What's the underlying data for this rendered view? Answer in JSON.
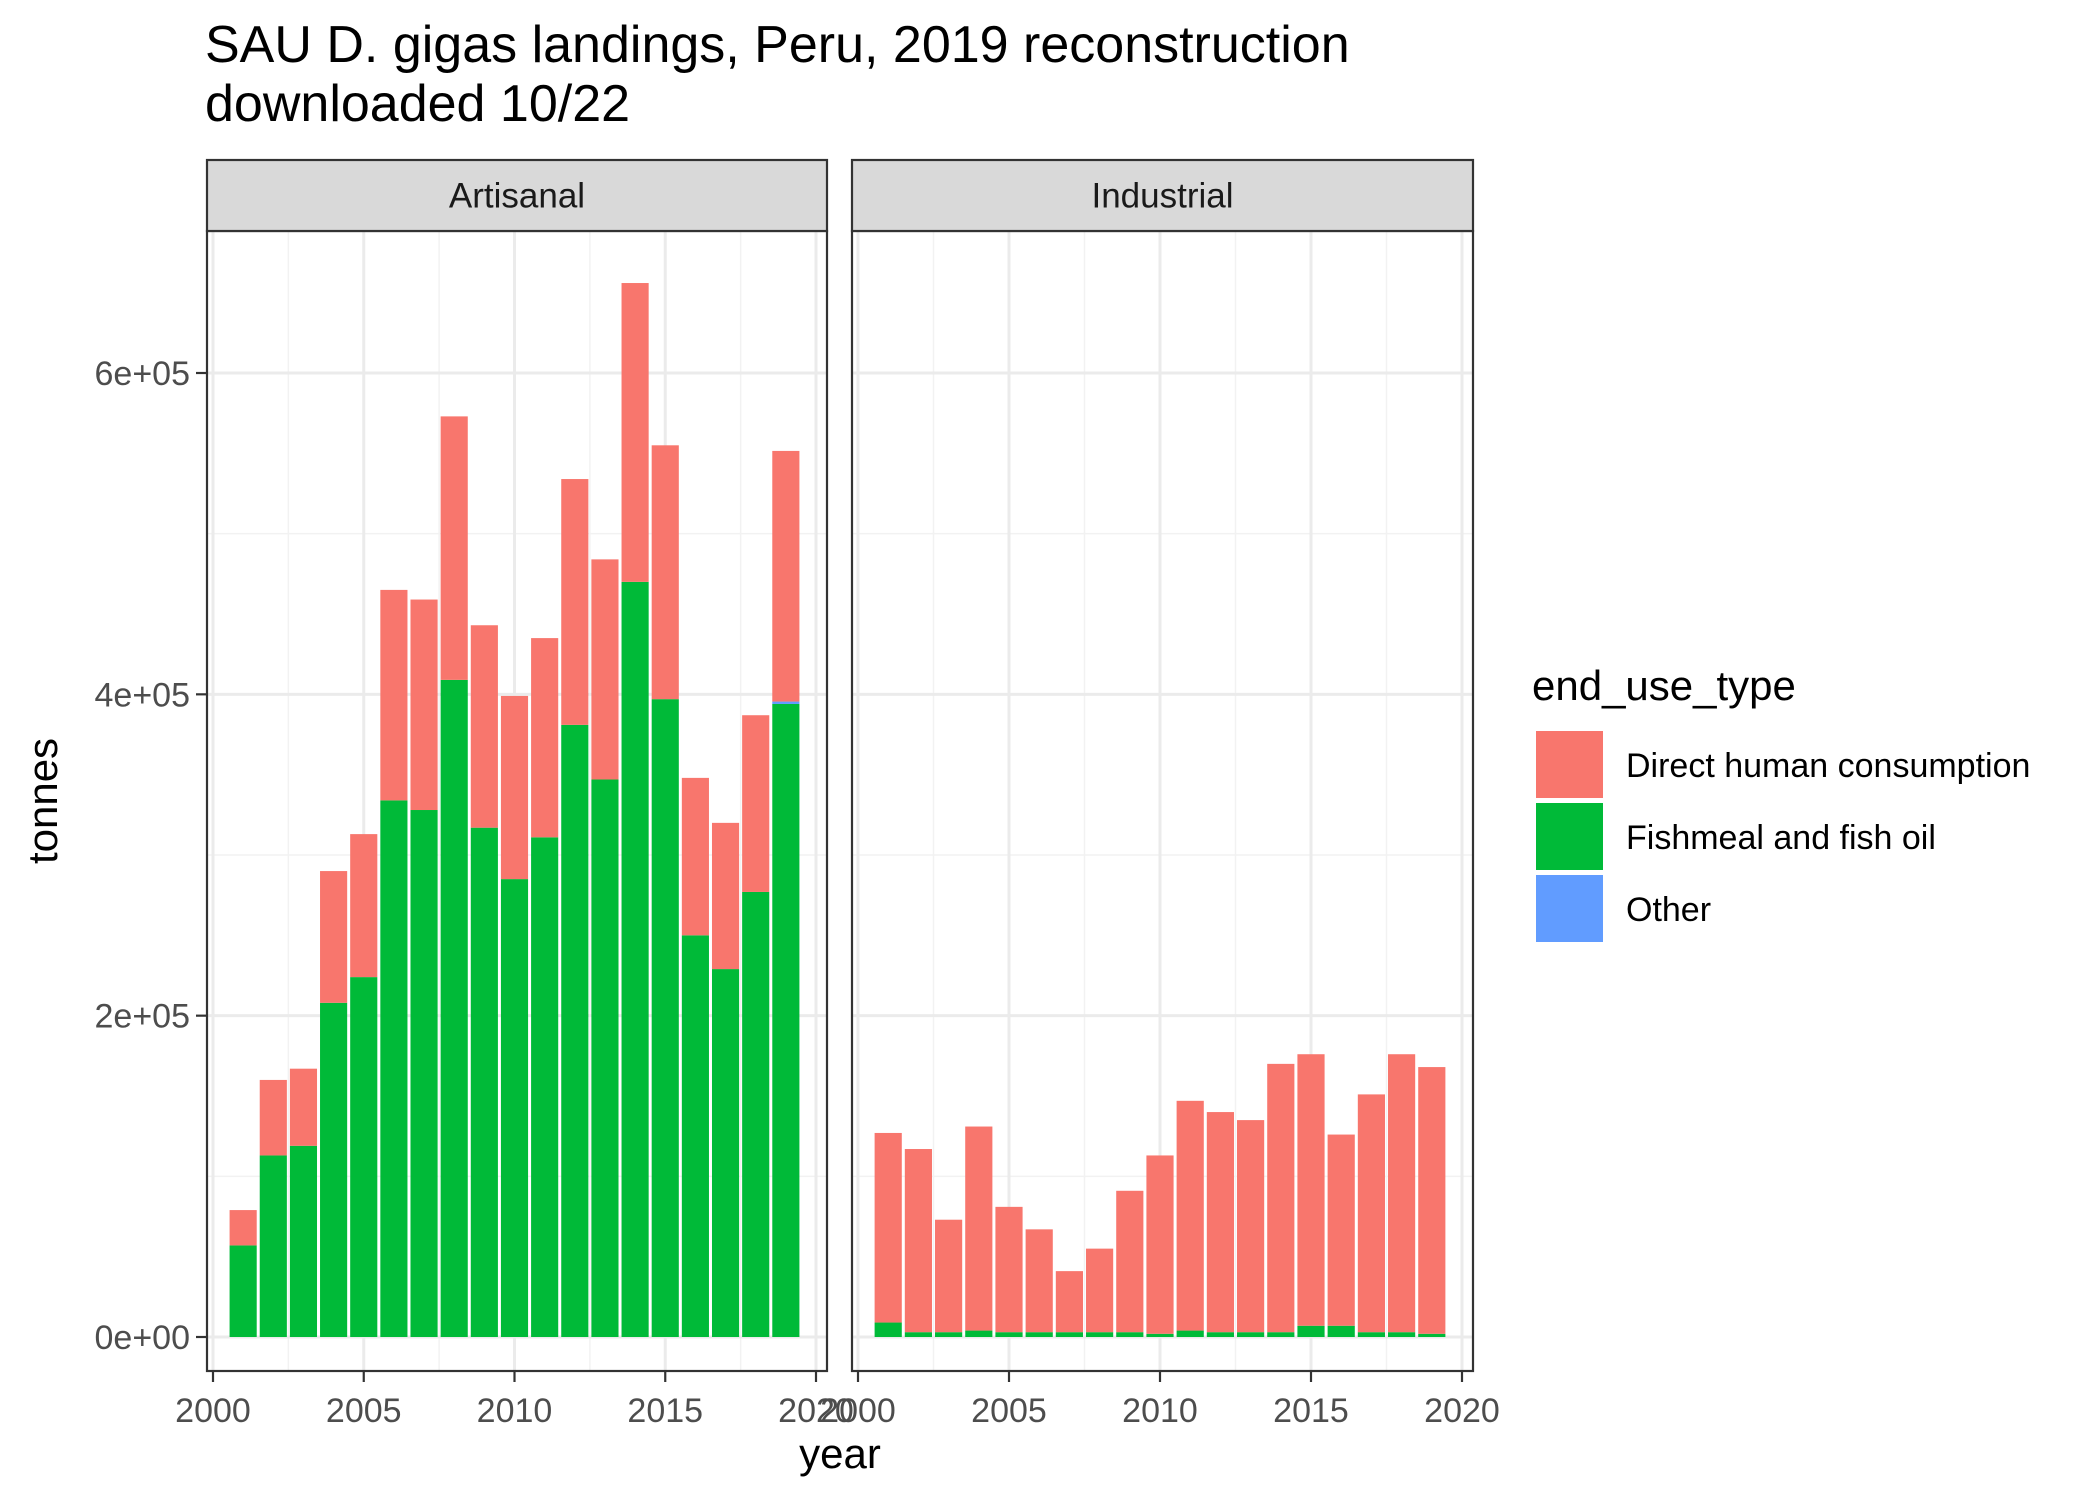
{
  "chart_data": {
    "type": "bar",
    "stacked": true,
    "title": "SAU D. gigas landings, Peru, 2019 reconstruction\ndownloaded 10/22",
    "title_lines": [
      "SAU D. gigas landings, Peru, 2019 reconstruction",
      "downloaded 10/22"
    ],
    "xlabel": "year",
    "ylabel": "tonnes",
    "xlim": [
      2000,
      2020
    ],
    "ylim": [
      0,
      690000
    ],
    "x_ticks": [
      2000,
      2005,
      2010,
      2015,
      2020
    ],
    "x_tick_labels": [
      "2000",
      "2005",
      "2010",
      "2015",
      "2020"
    ],
    "y_ticks": [
      0,
      200000,
      400000,
      600000
    ],
    "y_tick_labels": [
      "0e+00",
      "2e+05",
      "4e+05",
      "6e+05"
    ],
    "grid": true,
    "legend": {
      "title": "end_use_type",
      "position": "right",
      "entries": [
        {
          "name": "Direct human consumption",
          "color": "#F8766D"
        },
        {
          "name": "Fishmeal and fish oil",
          "color": "#00BA38"
        },
        {
          "name": "Other",
          "color": "#619CFF"
        }
      ]
    },
    "stack_order": [
      "Fishmeal and fish oil",
      "Other",
      "Direct human consumption"
    ],
    "facets": [
      {
        "name": "Artisanal",
        "years": [
          2001,
          2002,
          2003,
          2004,
          2005,
          2006,
          2007,
          2008,
          2009,
          2010,
          2011,
          2012,
          2013,
          2014,
          2015,
          2016,
          2017,
          2018,
          2019
        ],
        "series": [
          {
            "name": "Direct human consumption",
            "values": [
              22000,
              47000,
              48000,
              82000,
              89000,
              131000,
              131000,
              164000,
              126000,
              114000,
              124000,
              153000,
              137000,
              186000,
              158000,
              98000,
              91000,
              110000,
              156000
            ]
          },
          {
            "name": "Fishmeal and fish oil",
            "values": [
              57000,
              113000,
              119000,
              208000,
              224000,
              334000,
              328000,
              409000,
              317000,
              285000,
              311000,
              381000,
              347000,
              470000,
              397000,
              250000,
              229000,
              277000,
              394000
            ]
          },
          {
            "name": "Other",
            "values": [
              0,
              0,
              0,
              0,
              0,
              0,
              0,
              0,
              0,
              0,
              0,
              0,
              0,
              0,
              0,
              0,
              0,
              0,
              1500
            ]
          }
        ]
      },
      {
        "name": "Industrial",
        "years": [
          2001,
          2002,
          2003,
          2004,
          2005,
          2006,
          2007,
          2008,
          2009,
          2010,
          2011,
          2012,
          2013,
          2014,
          2015,
          2016,
          2017,
          2018,
          2019
        ],
        "series": [
          {
            "name": "Direct human consumption",
            "values": [
              118000,
              114000,
              70000,
              127000,
              78000,
              64000,
              38000,
              52000,
              88000,
              111000,
              143000,
              137000,
              132000,
              167000,
              169000,
              119000,
              148000,
              173000,
              166000
            ]
          },
          {
            "name": "Fishmeal and fish oil",
            "values": [
              9000,
              3000,
              3000,
              4000,
              3000,
              3000,
              3000,
              3000,
              3000,
              2000,
              4000,
              3000,
              3000,
              3000,
              7000,
              7000,
              3000,
              3000,
              2000
            ]
          },
          {
            "name": "Other",
            "values": [
              0,
              0,
              0,
              0,
              0,
              0,
              0,
              0,
              0,
              0,
              0,
              0,
              0,
              0,
              0,
              0,
              0,
              0,
              0
            ]
          }
        ]
      }
    ]
  }
}
